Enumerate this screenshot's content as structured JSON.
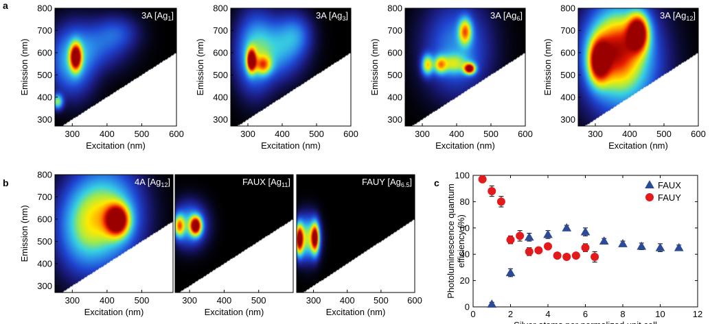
{
  "figure": {
    "panel_labels": [
      "a",
      "b",
      "c"
    ],
    "maps_shared": {
      "xlabel": "Excitation (nm)",
      "ylabel": "Emission (nm)",
      "yticks": [
        300,
        400,
        500,
        600,
        700,
        800
      ],
      "colormap": [
        "#000000",
        "#1a1a7a",
        "#1f44d0",
        "#2a8be8",
        "#38d2e0",
        "#a2ea4a",
        "#ffea00",
        "#ff8800",
        "#e61a00",
        "#9a0000"
      ]
    }
  },
  "chart_data": [
    {
      "type": "heatmap",
      "panel": "a",
      "title": "3A [Ag1]",
      "label_main": "3A [Ag",
      "label_sub": "1",
      "label_close": "]",
      "xlabel": "Excitation (nm)",
      "ylabel": "Emission (nm)",
      "xlim": [
        250,
        600
      ],
      "ylim": [
        270,
        800
      ],
      "xticks": [
        300,
        400,
        500,
        600
      ],
      "yticks": [
        300,
        400,
        500,
        600,
        700,
        800
      ],
      "peaks": [
        {
          "ex": 310,
          "em": 580,
          "amp": 1.0,
          "sx": 11,
          "sy": 40
        },
        {
          "ex": 300,
          "em": 560,
          "amp": 0.32,
          "sx": 40,
          "sy": 95
        },
        {
          "ex": 372,
          "em": 630,
          "amp": 0.16,
          "sx": 55,
          "sy": 70
        },
        {
          "ex": 430,
          "em": 690,
          "amp": 0.13,
          "sx": 40,
          "sy": 50
        },
        {
          "ex": 258,
          "em": 380,
          "amp": 0.45,
          "sx": 10,
          "sy": 22
        }
      ]
    },
    {
      "type": "heatmap",
      "panel": "a",
      "title": "3A [Ag3]",
      "label_main": "3A [Ag",
      "label_sub": "3",
      "label_close": "]",
      "xlabel": "Excitation (nm)",
      "ylabel": "Emission (nm)",
      "xlim": [
        250,
        600
      ],
      "ylim": [
        270,
        800
      ],
      "xticks": [
        300,
        400,
        500,
        600
      ],
      "yticks": [
        300,
        400,
        500,
        600,
        700,
        800
      ],
      "peaks": [
        {
          "ex": 310,
          "em": 565,
          "amp": 1.0,
          "sx": 9,
          "sy": 35
        },
        {
          "ex": 345,
          "em": 545,
          "amp": 0.5,
          "sx": 16,
          "sy": 28
        },
        {
          "ex": 320,
          "em": 600,
          "amp": 0.35,
          "sx": 35,
          "sy": 110
        },
        {
          "ex": 390,
          "em": 620,
          "amp": 0.28,
          "sx": 45,
          "sy": 85
        },
        {
          "ex": 440,
          "em": 680,
          "amp": 0.18,
          "sx": 30,
          "sy": 60
        }
      ]
    },
    {
      "type": "heatmap",
      "panel": "a",
      "title": "3A [Ag6]",
      "label_main": "3A [Ag",
      "label_sub": "6",
      "label_close": "]",
      "xlabel": "Excitation (nm)",
      "ylabel": "Emission (nm)",
      "xlim": [
        250,
        600
      ],
      "ylim": [
        270,
        800
      ],
      "xticks": [
        300,
        400,
        500,
        600
      ],
      "yticks": [
        300,
        400,
        500,
        600,
        700,
        800
      ],
      "peaks": [
        {
          "ex": 438,
          "em": 528,
          "amp": 1.0,
          "sx": 11,
          "sy": 16
        },
        {
          "ex": 425,
          "em": 695,
          "amp": 0.62,
          "sx": 13,
          "sy": 40
        },
        {
          "ex": 315,
          "em": 545,
          "amp": 0.55,
          "sx": 11,
          "sy": 30
        },
        {
          "ex": 352,
          "em": 545,
          "amp": 0.45,
          "sx": 12,
          "sy": 26
        },
        {
          "ex": 390,
          "em": 550,
          "amp": 0.35,
          "sx": 30,
          "sy": 30
        },
        {
          "ex": 400,
          "em": 620,
          "amp": 0.25,
          "sx": 60,
          "sy": 130
        }
      ]
    },
    {
      "type": "heatmap",
      "panel": "a",
      "title": "3A [Ag12]",
      "label_main": "3A [Ag",
      "label_sub": "12",
      "label_close": "]",
      "xlabel": "Excitation (nm)",
      "ylabel": "Emission (nm)",
      "xlim": [
        250,
        600
      ],
      "ylim": [
        270,
        800
      ],
      "xticks": [
        300,
        400,
        500,
        600
      ],
      "yticks": [
        300,
        400,
        500,
        600,
        700,
        800
      ],
      "peaks": [
        {
          "ex": 425,
          "em": 690,
          "amp": 1.0,
          "sx": 20,
          "sy": 55
        },
        {
          "ex": 310,
          "em": 560,
          "amp": 0.85,
          "sx": 20,
          "sy": 65
        },
        {
          "ex": 360,
          "em": 620,
          "amp": 0.6,
          "sx": 50,
          "sy": 110
        },
        {
          "ex": 380,
          "em": 560,
          "amp": 0.4,
          "sx": 70,
          "sy": 160
        }
      ]
    },
    {
      "type": "heatmap",
      "panel": "b",
      "title": "4A [Ag12]",
      "label_main": "4A [Ag",
      "label_sub": "12",
      "label_close": "]",
      "xlabel": "Excitation (nm)",
      "ylabel": "Emission (nm)",
      "xlim": [
        250,
        590
      ],
      "ylim": [
        270,
        800
      ],
      "xticks": [
        300,
        400,
        500
      ],
      "yticks": [
        300,
        400,
        500,
        600,
        700,
        800
      ],
      "peaks": [
        {
          "ex": 430,
          "em": 595,
          "amp": 1.0,
          "sx": 22,
          "sy": 45
        },
        {
          "ex": 400,
          "em": 620,
          "amp": 0.5,
          "sx": 60,
          "sy": 130
        },
        {
          "ex": 330,
          "em": 560,
          "amp": 0.3,
          "sx": 50,
          "sy": 130
        }
      ]
    },
    {
      "type": "heatmap",
      "panel": "b",
      "title": "FAUX [Ag11]",
      "label_main": "FAUX [Ag",
      "label_sub": "11",
      "label_close": "]",
      "xlabel": "Excitation (nm)",
      "ylabel": "",
      "xlim": [
        258,
        600
      ],
      "ylim": [
        270,
        800
      ],
      "xticks": [
        300,
        400,
        500
      ],
      "yticks": [],
      "peaks": [
        {
          "ex": 318,
          "em": 570,
          "amp": 1.0,
          "sx": 11,
          "sy": 28
        },
        {
          "ex": 270,
          "em": 570,
          "amp": 0.6,
          "sx": 10,
          "sy": 32
        },
        {
          "ex": 300,
          "em": 575,
          "amp": 0.35,
          "sx": 30,
          "sy": 60
        }
      ]
    },
    {
      "type": "heatmap",
      "panel": "b",
      "title": "FAUY [Ag6.5]",
      "label_main": "FAUY [Ag",
      "label_sub": "6.5",
      "label_close": "]",
      "xlabel": "Excitation (nm)",
      "ylabel": "",
      "xlim": [
        250,
        600
      ],
      "ylim": [
        270,
        800
      ],
      "xticks": [
        300,
        400,
        500,
        600
      ],
      "yticks": [],
      "peaks": [
        {
          "ex": 258,
          "em": 510,
          "amp": 0.95,
          "sx": 8,
          "sy": 45
        },
        {
          "ex": 305,
          "em": 515,
          "amp": 0.95,
          "sx": 8,
          "sy": 45
        },
        {
          "ex": 282,
          "em": 515,
          "amp": 0.5,
          "sx": 20,
          "sy": 60
        }
      ]
    },
    {
      "type": "scatter",
      "panel": "c",
      "xlabel": "Silver atoms per normalized unit cell",
      "ylabel_lines": [
        "Photoluminescence quantum",
        "efficiency (%)"
      ],
      "xlim": [
        0,
        12
      ],
      "ylim": [
        0,
        100
      ],
      "xticks": [
        0,
        2,
        4,
        6,
        8,
        10,
        12
      ],
      "yticks": [
        0,
        20,
        40,
        60,
        80,
        100
      ],
      "legend_position": "top-right",
      "series": [
        {
          "name": "FAUX",
          "marker": "triangle",
          "color": "#2d4a96",
          "x": [
            1,
            2,
            3,
            4,
            5,
            6,
            7,
            8,
            9,
            10,
            11
          ],
          "y": [
            2,
            26,
            53,
            55,
            60,
            57,
            50,
            48,
            46,
            45,
            45
          ],
          "err": [
            1.5,
            3,
            3,
            3,
            2,
            3,
            2,
            2,
            2.5,
            3,
            2
          ]
        },
        {
          "name": "FAUY",
          "marker": "circle",
          "color": "#e31a1c",
          "x": [
            0.5,
            1.0,
            1.5,
            2.0,
            2.5,
            3.0,
            3.5,
            4.0,
            4.5,
            5.0,
            5.5,
            6.0,
            6.5
          ],
          "y": [
            97,
            88,
            80,
            51,
            54,
            42,
            43,
            46,
            39,
            38,
            39,
            45,
            38
          ],
          "err": [
            2,
            4,
            4,
            3,
            4,
            3,
            2,
            2,
            2,
            2,
            2,
            3,
            4
          ]
        }
      ]
    }
  ]
}
